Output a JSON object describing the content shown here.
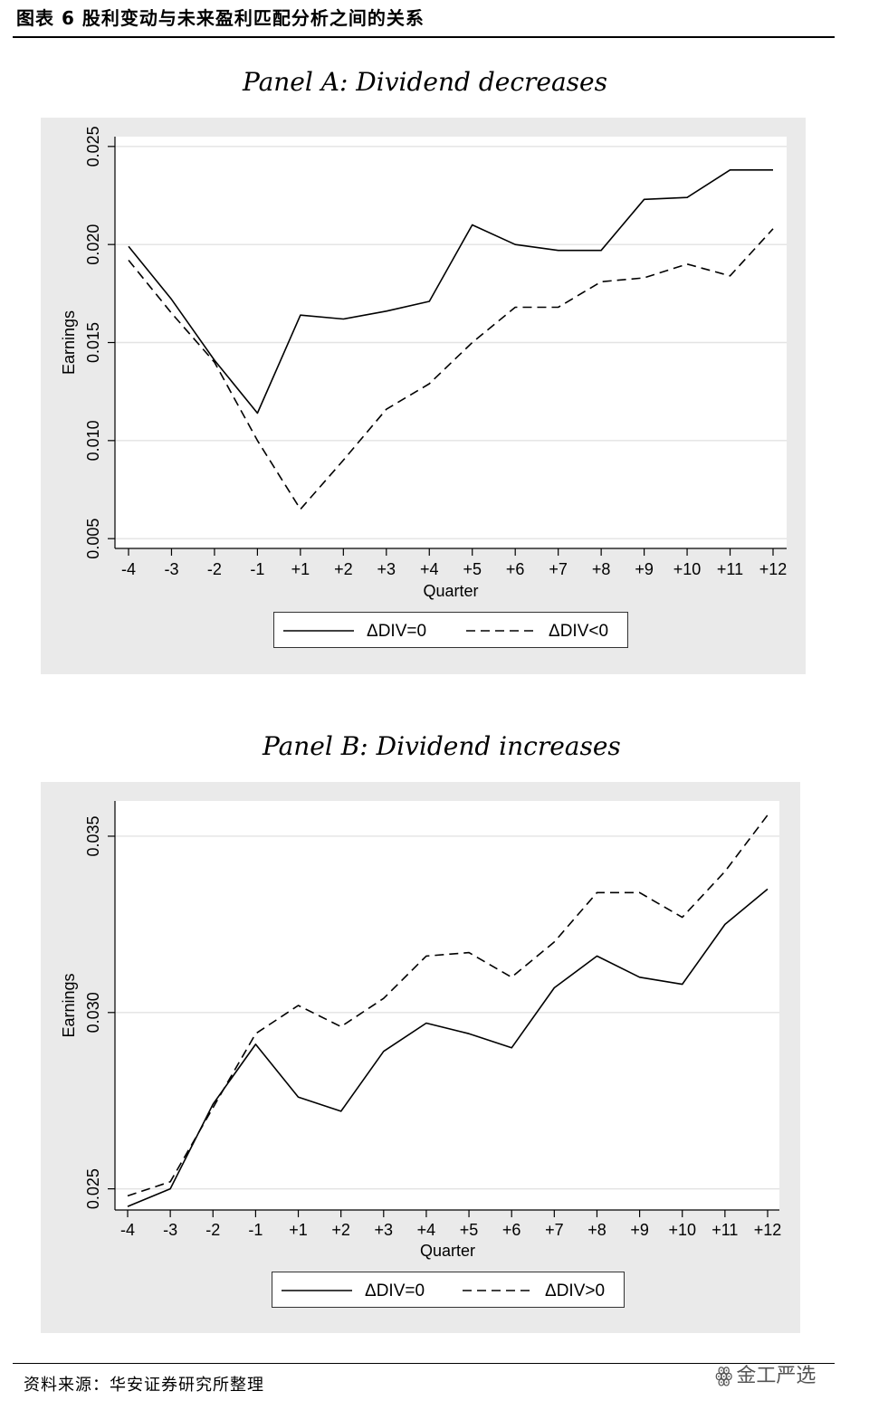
{
  "figure_title": "图表 6 股利变动与未来盈利匹配分析之间的关系",
  "source": "资料来源：华安证券研究所整理",
  "watermark": "金工严选",
  "chart_data": [
    {
      "type": "line",
      "title": "Panel A: Dividend decreases",
      "xlabel": "Quarter",
      "ylabel": "Earnings",
      "categories": [
        "-4",
        "-3",
        "-2",
        "-1",
        "+1",
        "+2",
        "+3",
        "+4",
        "+5",
        "+6",
        "+7",
        "+8",
        "+9",
        "+10",
        "+11",
        "+12"
      ],
      "ylim": [
        0.0045,
        0.0255
      ],
      "yticks": [
        0.005,
        0.01,
        0.015,
        0.02,
        0.025
      ],
      "ytick_labels": [
        "0.005",
        "0.010",
        "0.015",
        "0.020",
        "0.025"
      ],
      "grid": true,
      "legend": "bottom-center",
      "series": [
        {
          "name": "ΔDIV=0",
          "style": "solid",
          "values": [
            0.0199,
            0.0172,
            0.0141,
            0.0114,
            0.0164,
            0.0162,
            0.0166,
            0.0171,
            0.021,
            0.02,
            0.0197,
            0.0197,
            0.0223,
            0.0224,
            0.0238,
            0.0238
          ]
        },
        {
          "name": "ΔDIV<0",
          "style": "dashed",
          "values": [
            0.0192,
            0.0165,
            0.014,
            0.01,
            0.0065,
            0.009,
            0.0116,
            0.0129,
            0.015,
            0.0168,
            0.0168,
            0.0181,
            0.0183,
            0.019,
            0.0184,
            0.0208
          ]
        }
      ]
    },
    {
      "type": "line",
      "title": "Panel B: Dividend increases",
      "xlabel": "Quarter",
      "ylabel": "Earnings",
      "categories": [
        "-4",
        "-3",
        "-2",
        "-1",
        "+1",
        "+2",
        "+3",
        "+4",
        "+5",
        "+6",
        "+7",
        "+8",
        "+9",
        "+10",
        "+11",
        "+12"
      ],
      "ylim": [
        0.0244,
        0.036
      ],
      "yticks": [
        0.025,
        0.03,
        0.035
      ],
      "ytick_labels": [
        "0.025",
        "0.030",
        "0.035"
      ],
      "grid": true,
      "legend": "bottom-center",
      "series": [
        {
          "name": "ΔDIV=0",
          "style": "solid",
          "values": [
            0.0245,
            0.025,
            0.0274,
            0.0291,
            0.0276,
            0.0272,
            0.0289,
            0.0297,
            0.0294,
            0.029,
            0.0307,
            0.0316,
            0.031,
            0.0308,
            0.0325,
            0.0335
          ]
        },
        {
          "name": "ΔDIV>0",
          "style": "dashed",
          "values": [
            0.0248,
            0.0252,
            0.0273,
            0.0294,
            0.0302,
            0.0296,
            0.0304,
            0.0316,
            0.0317,
            0.031,
            0.032,
            0.0334,
            0.0334,
            0.0327,
            0.034,
            0.0356
          ]
        }
      ]
    }
  ]
}
